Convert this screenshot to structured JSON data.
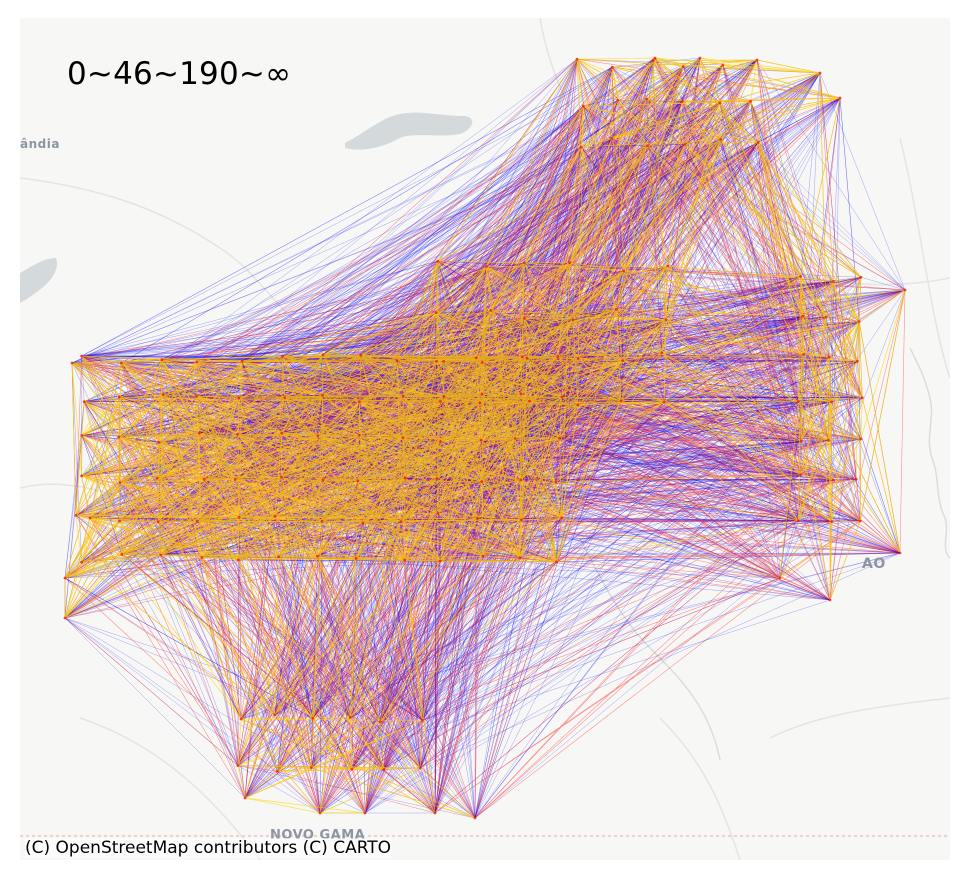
{
  "map": {
    "legend_label": "0~46~190~∞",
    "attribution": "(C) OpenStreetMap contributors (C) CARTO",
    "place_labels": {
      "west": "ândia",
      "east": "AO",
      "south": "NOVO GAMA"
    },
    "edge_colors": {
      "long": "#0000ff",
      "medium": "#ff0000",
      "short": "#ffd700"
    },
    "basemap": {
      "background": "#f7f7f5",
      "water": "#d4dadc",
      "roads": "#e4e4e2",
      "boundary": "#e8b8bc"
    }
  }
}
